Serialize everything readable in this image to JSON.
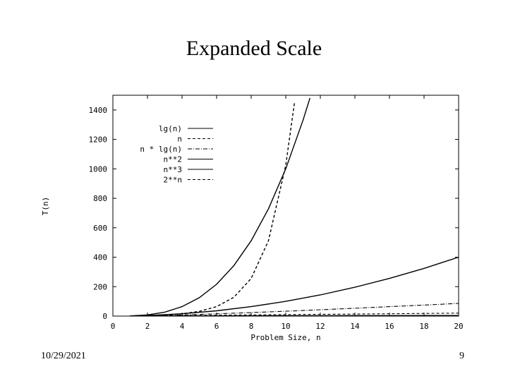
{
  "slide": {
    "title": "Expanded Scale",
    "date": "10/29/2021",
    "page": "9"
  },
  "colors": {
    "line": "#000000",
    "background": "#ffffff"
  },
  "chart_data": {
    "type": "line",
    "title": "",
    "xlabel": "Problem Size, n",
    "ylabel": "T(n)",
    "xlim": [
      0,
      20
    ],
    "ylim": [
      0,
      1500
    ],
    "xticks": [
      "0",
      "2",
      "4",
      "6",
      "8",
      "10",
      "12",
      "14",
      "16",
      "18",
      "20"
    ],
    "yticks": [
      "0",
      "200",
      "400",
      "600",
      "800",
      "1000",
      "1200",
      "1400"
    ],
    "grid": false,
    "legend_position": "top-left",
    "series": [
      {
        "name": "lg(n)",
        "style": "solid",
        "x": [
          1,
          2,
          4,
          6,
          8,
          10,
          12,
          14,
          16,
          18,
          20
        ],
        "y": [
          0,
          1,
          2,
          2.58,
          3,
          3.32,
          3.58,
          3.81,
          4,
          4.17,
          4.32
        ]
      },
      {
        "name": "n",
        "style": "dash",
        "x": [
          1,
          2,
          4,
          6,
          8,
          10,
          12,
          14,
          16,
          18,
          20
        ],
        "y": [
          1,
          2,
          4,
          6,
          8,
          10,
          12,
          14,
          16,
          18,
          20
        ]
      },
      {
        "name": "n * lg(n)",
        "style": "dashdot",
        "x": [
          1,
          2,
          4,
          6,
          8,
          10,
          12,
          14,
          16,
          18,
          20
        ],
        "y": [
          0,
          2,
          8,
          15.5,
          24,
          33.2,
          43,
          53.3,
          64,
          75,
          86.4
        ]
      },
      {
        "name": "n**2",
        "style": "solid",
        "x": [
          1,
          2,
          4,
          6,
          8,
          10,
          12,
          14,
          16,
          18,
          20
        ],
        "y": [
          1,
          4,
          16,
          36,
          64,
          100,
          144,
          196,
          256,
          324,
          400
        ]
      },
      {
        "name": "n**3",
        "style": "solid",
        "x": [
          1,
          2,
          3,
          4,
          5,
          6,
          7,
          8,
          9,
          10,
          11,
          11.4
        ],
        "y": [
          1,
          8,
          27,
          64,
          125,
          216,
          343,
          512,
          729,
          1000,
          1331,
          1481.5
        ]
      },
      {
        "name": "2**n",
        "style": "dash",
        "x": [
          1,
          2,
          3,
          4,
          5,
          6,
          7,
          8,
          9,
          10,
          10.5
        ],
        "y": [
          2,
          4,
          8,
          16,
          32,
          64,
          128,
          256,
          512,
          1024,
          1448
        ]
      }
    ]
  }
}
